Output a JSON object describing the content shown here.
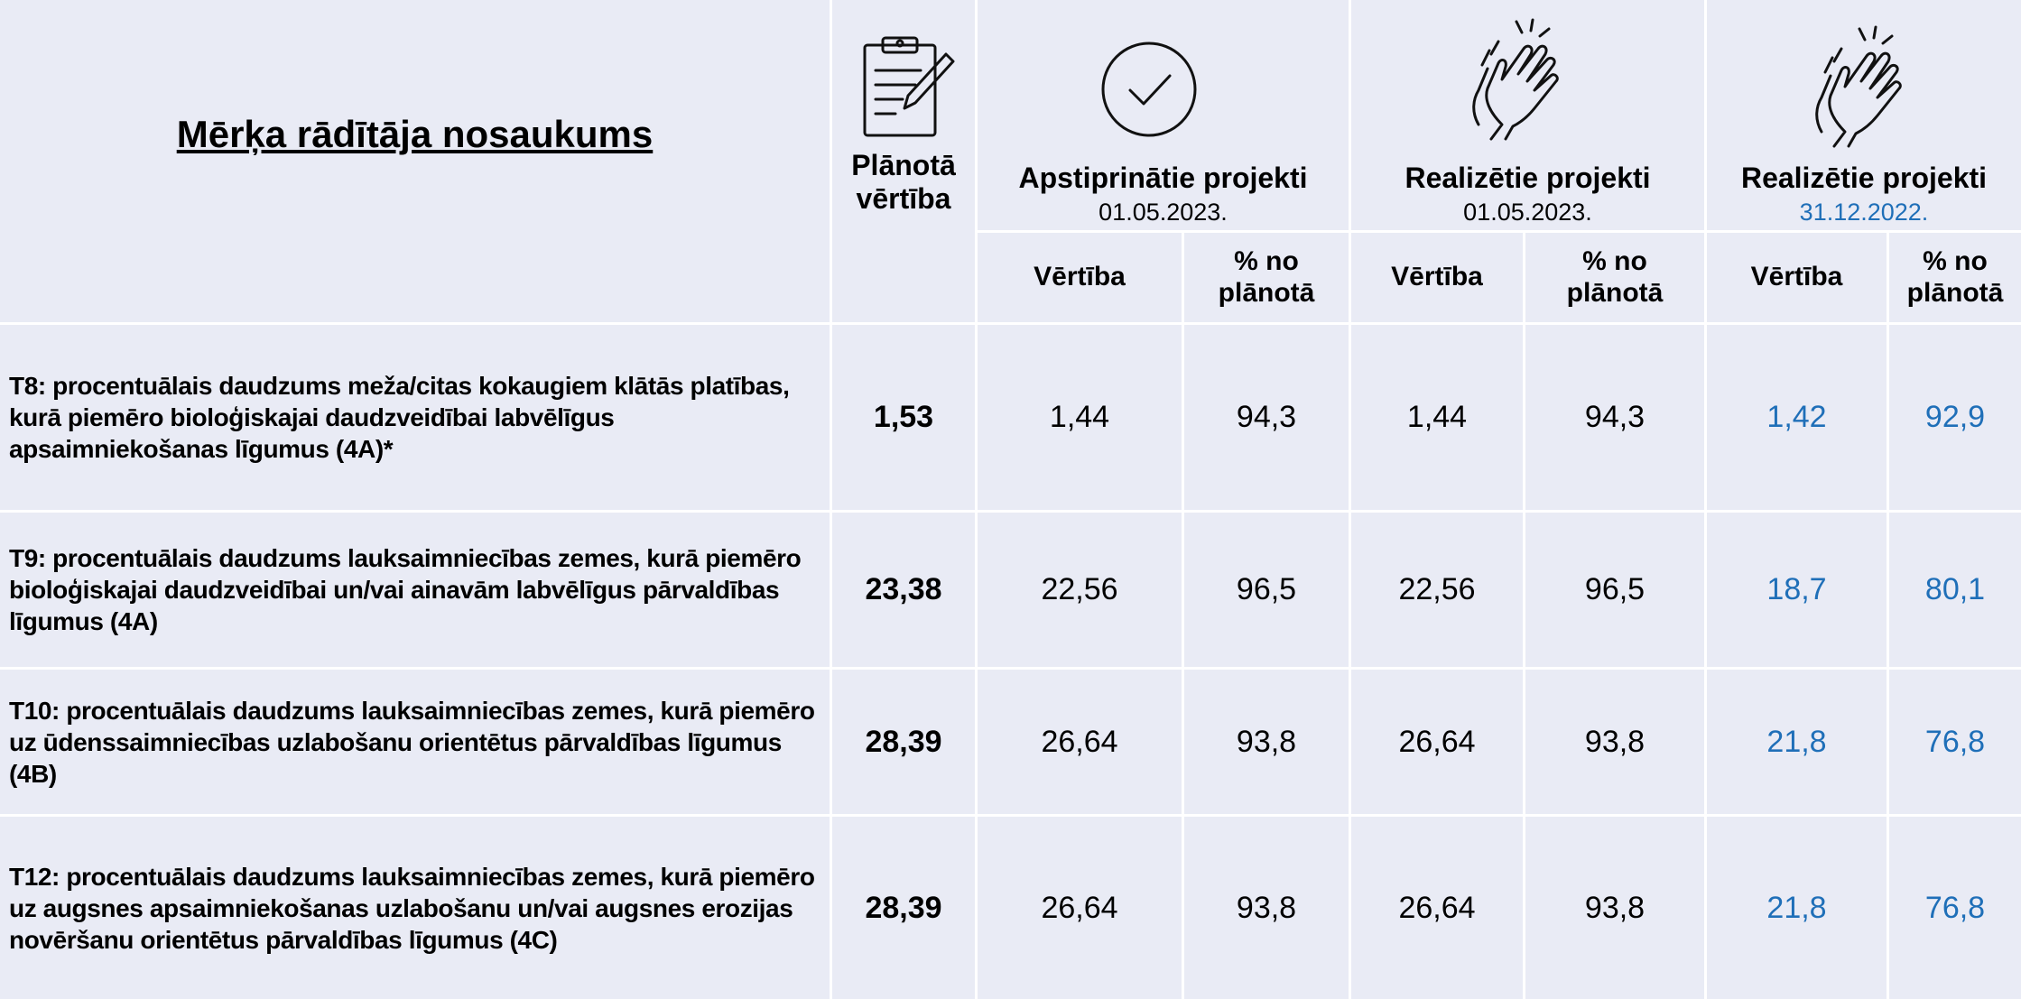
{
  "header": {
    "title": "Mērķa rādītāja nosaukums",
    "planned": "Plānotā vērtība",
    "groups": [
      {
        "title": "Apstiprinātie projekti",
        "date": "01.05.2023."
      },
      {
        "title": "Realizētie projekti",
        "date": "01.05.2023."
      },
      {
        "title": "Realizētie projekti",
        "date": "31.12.2022."
      }
    ],
    "subheaders": [
      "Vērtība",
      "% no plānotā",
      "Vērtība",
      "% no plānotā",
      "Vērtība",
      "% no plānotā"
    ]
  },
  "table": {
    "rows": [
      {
        "label": "T8: procentuālais daudzums meža/citas kokaugiem klātās platības, kurā piemēro bioloģiskajai daudzveidībai labvēlīgus apsaimniekošanas līgumus (4A)*",
        "planned": "1,53",
        "cells": [
          "1,44",
          "94,3",
          "1,44",
          "94,3",
          "1,42",
          "92,9"
        ]
      },
      {
        "label": "T9: procentuālais daudzums lauksaimniecības zemes, kurā piemēro bioloģiskajai daudzveidībai un/vai ainavām labvēlīgus pārvaldības līgumus (4A)",
        "planned": "23,38",
        "cells": [
          "22,56",
          "96,5",
          "22,56",
          "96,5",
          "18,7",
          "80,1"
        ]
      },
      {
        "label": "T10: procentuālais daudzums lauksaimniecības zemes, kurā piemēro uz ūdenssaimniecības uzlabošanu orientētus pārvaldības līgumus (4B)",
        "planned": "28,39",
        "cells": [
          "26,64",
          "93,8",
          "26,64",
          "93,8",
          "21,8",
          "76,8"
        ]
      },
      {
        "label": "T12: procentuālais daudzums lauksaimniecības zemes, kurā piemēro uz augsnes apsaimniekošanas uzlabošanu un/vai augsnes erozijas novēršanu orientētus pārvaldības līgumus (4C)",
        "planned": "28,39",
        "cells": [
          "26,64",
          "93,8",
          "26,64",
          "93,8",
          "21,8",
          "76,8"
        ]
      }
    ]
  }
}
